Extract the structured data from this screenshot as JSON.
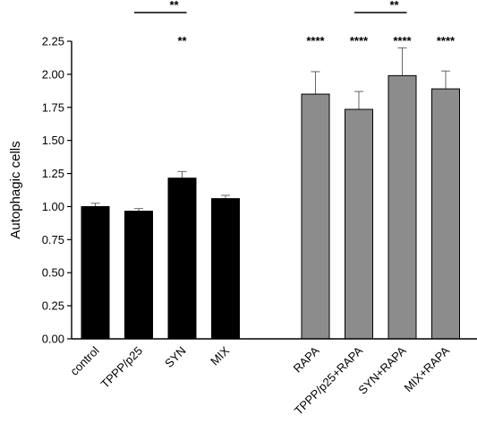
{
  "chart_data": {
    "type": "bar",
    "ylabel": "Autophagic cells",
    "ylim": [
      0.0,
      2.25
    ],
    "yticks": [
      "0.00",
      "0.25",
      "0.50",
      "0.75",
      "1.00",
      "1.25",
      "1.50",
      "1.75",
      "2.00",
      "2.25"
    ],
    "grid": false,
    "groups": [
      {
        "color": "#000000",
        "bars": [
          {
            "category": "control",
            "value": 1.0,
            "error": 0.025,
            "sig": ""
          },
          {
            "category": "TPPP/p25",
            "value": 0.965,
            "error": 0.02,
            "sig": ""
          },
          {
            "category": "SYN",
            "value": 1.215,
            "error": 0.05,
            "sig": "**"
          },
          {
            "category": "MIX",
            "value": 1.06,
            "error": 0.025,
            "sig": ""
          }
        ]
      },
      {
        "color": "#8c8c8c",
        "bars": [
          {
            "category": "RAPA",
            "value": 1.85,
            "error": 0.17,
            "sig": "****"
          },
          {
            "category": "TPPP/p25+RAPA",
            "value": 1.735,
            "error": 0.135,
            "sig": "****"
          },
          {
            "category": "SYN+RAPA",
            "value": 1.99,
            "error": 0.21,
            "sig": "****"
          },
          {
            "category": "MIX+RAPA",
            "value": 1.89,
            "error": 0.135,
            "sig": "****"
          }
        ]
      }
    ],
    "brackets": [
      {
        "from": "TPPP/p25",
        "to": "SYN",
        "label": "**"
      },
      {
        "from": "TPPP/p25+RAPA",
        "to": "SYN+RAPA",
        "label": "**"
      }
    ]
  }
}
